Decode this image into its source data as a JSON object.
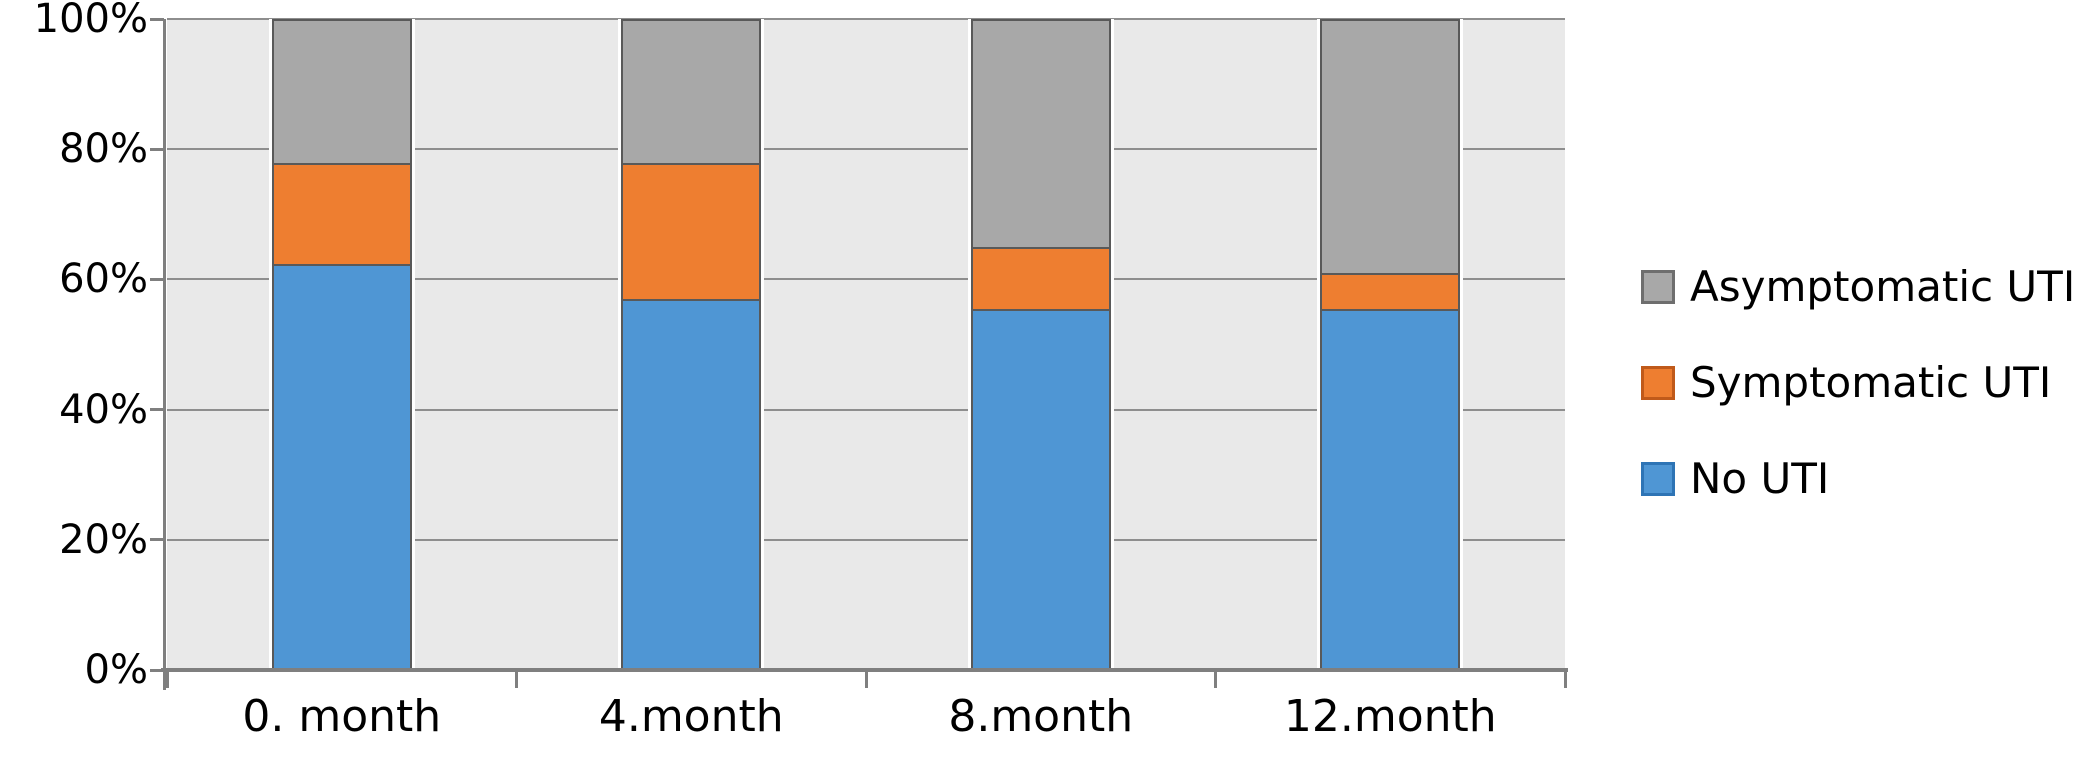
{
  "chart_data": {
    "type": "bar",
    "stacked": true,
    "percent_stacked": true,
    "title": "",
    "xlabel": "",
    "ylabel": "",
    "categories": [
      "0. month",
      "4.month",
      "8.month",
      "12.month"
    ],
    "series": [
      {
        "name": "No UTI",
        "color": "#4f96d4",
        "values": [
          62.5,
          57.0,
          55.5,
          55.5
        ]
      },
      {
        "name": "Symptomatic UTI",
        "color": "#ee7e30",
        "values": [
          15.5,
          21.0,
          9.5,
          5.5
        ]
      },
      {
        "name": "Asymptomatic UTI",
        "color": "#a8a8a8",
        "values": [
          22.0,
          22.0,
          35.0,
          39.0
        ]
      }
    ],
    "y_axis": {
      "min": 0,
      "max": 100,
      "tick_values": [
        0,
        20,
        40,
        60,
        80,
        100
      ],
      "ticks": [
        "0%",
        "20%",
        "40%",
        "60%",
        "80%",
        "100%"
      ],
      "grid": true
    },
    "legend": {
      "position": "right",
      "items": [
        {
          "label": "Asymptomatic UTI",
          "fill": "#a8a8a8",
          "border": "#6e6e6e"
        },
        {
          "label": "Symptomatic UTI",
          "fill": "#ee7e30",
          "border": "#c05a1a"
        },
        {
          "label": "No UTI",
          "fill": "#4f96d4",
          "border": "#2e74b5"
        }
      ]
    },
    "styles": {
      "plot_background": "#e9e9e9",
      "gridline_color": "#8e8e8e",
      "axis_color": "#7f7f7f",
      "segment_border_color": "#595959",
      "text_color": "#000000",
      "page_background": "#ffffff"
    }
  }
}
